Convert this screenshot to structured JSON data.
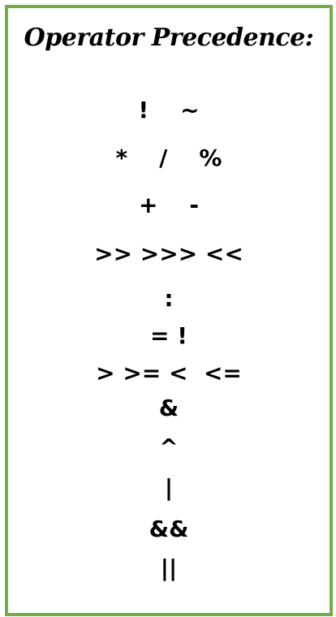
{
  "title": "Operator Precedence:",
  "rows": [
    "!    ~",
    "*    /    %",
    "+    -",
    ">> >>> <<",
    ":",
    "= !",
    "> >= <  <=",
    "&",
    "^",
    "|",
    "&&",
    "||"
  ],
  "colors": {
    "border": "#70ad47",
    "text": "#000000",
    "background": "#ffffff"
  }
}
